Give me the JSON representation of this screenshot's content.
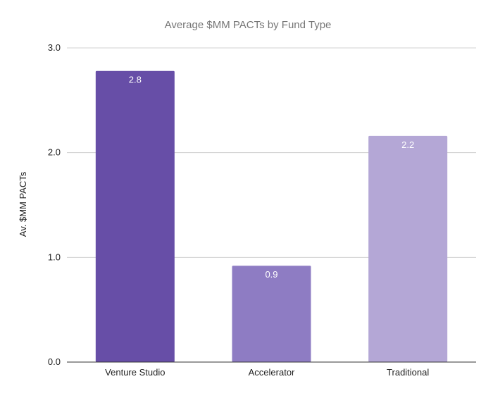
{
  "chart_data": {
    "type": "bar",
    "title": "Average $MM PACTs by Fund Type",
    "xlabel": "",
    "ylabel": "Av. $MM PACTs",
    "categories": [
      "Venture Studio",
      "Accelerator",
      "Traditional"
    ],
    "values": [
      2.78,
      0.92,
      2.16
    ],
    "data_labels": [
      "2.8",
      "0.9",
      "2.2"
    ],
    "colors": [
      "#674ea7",
      "#8e7cc3",
      "#b4a7d6"
    ],
    "ylim": [
      0,
      3
    ],
    "yticks": [
      0,
      1,
      2,
      3
    ],
    "ytick_labels": [
      "0.0",
      "1.0",
      "2.0",
      "3.0"
    ],
    "grid": true,
    "legend": "none"
  }
}
